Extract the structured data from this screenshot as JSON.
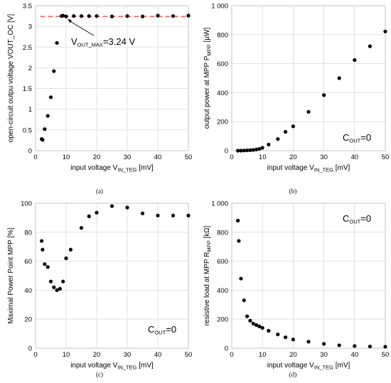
{
  "chart_data": [
    {
      "id": "a",
      "type": "scatter",
      "caption": "(a)",
      "xlabel": {
        "main": "input voltage V",
        "sub": "IN_TEG",
        "tail": " [mV]"
      },
      "ylabel": {
        "main": "open-circuit outpu voltage VOUT_OC [V]",
        "sub": "",
        "tail": ""
      },
      "xlim": [
        0,
        50
      ],
      "ylim": [
        0,
        3.5
      ],
      "xticks": [
        {
          "v": 0,
          "label": "0"
        },
        {
          "v": 10,
          "label": "10"
        },
        {
          "v": 20,
          "label": "20"
        },
        {
          "v": 30,
          "label": "30"
        },
        {
          "v": 40,
          "label": "40"
        },
        {
          "v": 50,
          "label": "50"
        }
      ],
      "yticks": [
        {
          "v": 0,
          "label": "0"
        },
        {
          "v": 0.5,
          "label": "0.5"
        },
        {
          "v": 1,
          "label": "1"
        },
        {
          "v": 1.5,
          "label": "1.5"
        },
        {
          "v": 2,
          "label": "2"
        },
        {
          "v": 2.5,
          "label": "2.5"
        },
        {
          "v": 3,
          "label": "3"
        },
        {
          "v": 3.5,
          "label": "3.5"
        }
      ],
      "x": [
        2,
        2.3,
        3,
        4,
        5,
        6,
        7,
        8.5,
        9,
        10,
        12.5,
        15,
        17.5,
        20,
        25,
        30,
        35,
        40,
        45,
        50
      ],
      "y": [
        0.28,
        0.26,
        0.52,
        0.84,
        1.29,
        1.92,
        2.6,
        3.25,
        3.26,
        3.24,
        3.25,
        3.25,
        3.25,
        3.25,
        3.24,
        3.25,
        3.24,
        3.26,
        3.25,
        3.26
      ],
      "reference_line": {
        "y": 3.24,
        "color": "#e8392f",
        "style": "dashed"
      },
      "annotation": {
        "main": "V",
        "sub": "OUT_MAX",
        "tail": "=3.24 V",
        "points_to_x": 10.5
      },
      "grid": true
    },
    {
      "id": "b",
      "type": "scatter",
      "caption": "(b)",
      "xlabel": {
        "main": "input voltage V",
        "sub": "IN_TEG",
        "tail": " [mV]"
      },
      "ylabel": {
        "main": "output power at MPP P",
        "sub": "MPP",
        "tail": " [µW]"
      },
      "xlim": [
        0,
        50
      ],
      "ylim": [
        0,
        1000
      ],
      "xticks": [
        {
          "v": 0,
          "label": "0"
        },
        {
          "v": 10,
          "label": "10"
        },
        {
          "v": 20,
          "label": "20"
        },
        {
          "v": 30,
          "label": "30"
        },
        {
          "v": 40,
          "label": "40"
        },
        {
          "v": 50,
          "label": "50"
        }
      ],
      "yticks": [
        {
          "v": 0,
          "label": "0"
        },
        {
          "v": 200,
          "label": "200"
        },
        {
          "v": 400,
          "label": "400"
        },
        {
          "v": 600,
          "label": "600"
        },
        {
          "v": 800,
          "label": "800"
        },
        {
          "v": 1000,
          "label": "1 000"
        }
      ],
      "x": [
        2,
        3,
        4,
        5,
        6,
        7,
        8,
        9,
        10,
        12,
        15,
        17.5,
        20,
        25,
        30,
        35,
        40,
        45,
        50
      ],
      "y": [
        0,
        0,
        1,
        2,
        3,
        5,
        8,
        12,
        20,
        42,
        80,
        130,
        168,
        268,
        383,
        500,
        625,
        720,
        822
      ],
      "annotation": {
        "main": "C",
        "sub": "OUT",
        "tail": "=0"
      },
      "grid": true
    },
    {
      "id": "c",
      "type": "scatter",
      "caption": "(c)",
      "xlabel": {
        "main": "input voltage V",
        "sub": "IN_TEG",
        "tail": " [mV]"
      },
      "ylabel": {
        "main": "Maximal Power Point MPP [%]",
        "sub": "",
        "tail": ""
      },
      "xlim": [
        0,
        50
      ],
      "ylim": [
        0,
        100
      ],
      "xticks": [
        {
          "v": 0,
          "label": "0"
        },
        {
          "v": 10,
          "label": "10"
        },
        {
          "v": 20,
          "label": "20"
        },
        {
          "v": 30,
          "label": "30"
        },
        {
          "v": 40,
          "label": "40"
        },
        {
          "v": 50,
          "label": "50"
        }
      ],
      "yticks": [
        {
          "v": 0,
          "label": "0"
        },
        {
          "v": 20,
          "label": "20"
        },
        {
          "v": 40,
          "label": "40"
        },
        {
          "v": 60,
          "label": "60"
        },
        {
          "v": 80,
          "label": "80"
        },
        {
          "v": 100,
          "label": "100"
        }
      ],
      "x": [
        2,
        2.3,
        3,
        4,
        5,
        6,
        7,
        8,
        9,
        10,
        11.5,
        15,
        17.5,
        20,
        25,
        30,
        35,
        40,
        45,
        50
      ],
      "y": [
        74,
        68,
        58,
        56,
        46,
        42,
        40,
        41,
        46,
        62,
        68,
        83,
        91,
        93.5,
        98,
        97,
        93,
        91.5,
        91.5,
        91.5
      ],
      "annotation": {
        "main": "C",
        "sub": "OUT",
        "tail": "=0"
      },
      "grid": true
    },
    {
      "id": "d",
      "type": "scatter",
      "caption": "(d)",
      "xlabel": {
        "main": "input voltage V",
        "sub": "IN_TEG",
        "tail": " [mV]"
      },
      "ylabel": {
        "main": "resistive load at MPP R",
        "sub": "MPP",
        "tail": " [kΩ]"
      },
      "xlim": [
        0,
        50
      ],
      "ylim": [
        0,
        1000
      ],
      "xticks": [
        {
          "v": 0,
          "label": "0"
        },
        {
          "v": 10,
          "label": "10"
        },
        {
          "v": 20,
          "label": "20"
        },
        {
          "v": 30,
          "label": "30"
        },
        {
          "v": 40,
          "label": "40"
        },
        {
          "v": 50,
          "label": "50"
        }
      ],
      "yticks": [
        {
          "v": 0,
          "label": "0"
        },
        {
          "v": 200,
          "label": "200"
        },
        {
          "v": 400,
          "label": "400"
        },
        {
          "v": 600,
          "label": "600"
        },
        {
          "v": 800,
          "label": "800"
        },
        {
          "v": 1000,
          "label": "1 000"
        }
      ],
      "x": [
        2,
        2.3,
        3,
        4,
        5,
        6,
        7,
        8,
        9,
        10,
        12,
        15,
        17.5,
        20,
        25,
        30,
        35,
        40,
        45,
        50
      ],
      "y": [
        880,
        740,
        480,
        330,
        220,
        190,
        170,
        160,
        150,
        140,
        120,
        95,
        75,
        60,
        45,
        30,
        20,
        15,
        12,
        10
      ],
      "annotation": {
        "main": "C",
        "sub": "OUT",
        "tail": "=0"
      },
      "grid": true
    }
  ]
}
